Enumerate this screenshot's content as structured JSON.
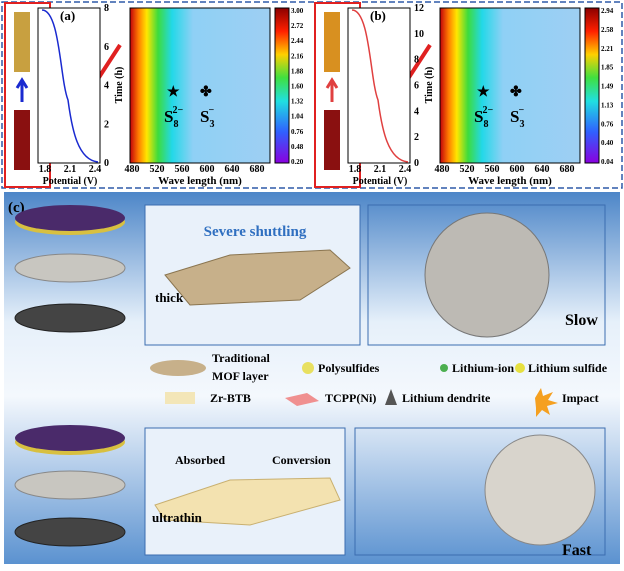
{
  "panel_a": {
    "label": "(a)",
    "time_axis_label": "Time (h)",
    "potential_label": "Potential (V)",
    "wave_label": "Wave length (nm)",
    "potential_ticks": [
      "1.8",
      "2.1",
      "2.4"
    ],
    "time_ticks": [
      "0",
      "2",
      "4",
      "6",
      "8"
    ],
    "wave_ticks": [
      "480",
      "520",
      "560",
      "600",
      "640",
      "680"
    ],
    "colorbar_ticks": [
      "3.00",
      "2.72",
      "2.44",
      "2.16",
      "1.88",
      "1.60",
      "1.32",
      "1.04",
      "0.76",
      "0.48",
      "0.20"
    ],
    "species": [
      {
        "base": "S",
        "sub": "8",
        "sup": "2−"
      },
      {
        "base": "S",
        "sub": "3",
        "sup": "−"
      }
    ]
  },
  "panel_b": {
    "label": "(b)",
    "time_axis_label": "Time (h)",
    "potential_label": "Potential (V)",
    "wave_label": "Wave length (nm)",
    "potential_ticks": [
      "1.8",
      "2.1",
      "2.4"
    ],
    "time_ticks": [
      "0",
      "2",
      "4",
      "6",
      "8",
      "10",
      "12"
    ],
    "wave_ticks": [
      "480",
      "520",
      "560",
      "600",
      "640",
      "680"
    ],
    "colorbar_ticks": [
      "2.94",
      "2.58",
      "2.21",
      "1.85",
      "1.49",
      "1.13",
      "0.76",
      "0.40",
      "0.04"
    ],
    "species": [
      {
        "base": "S",
        "sub": "8",
        "sup": "2−"
      },
      {
        "base": "S",
        "sub": "3",
        "sup": "−"
      }
    ]
  },
  "panel_c": {
    "label": "(c)",
    "top_title": "Severe shuttling",
    "top_layer": "thick",
    "top_speed": "Slow",
    "legend": {
      "mof_1": "Traditional",
      "mof_2": "MOF layer",
      "polysulfides": "Polysulfides",
      "lithium_ion": "Lithium-ion",
      "lithium_sulfide": "Lithium sulfide",
      "zr_btb": "Zr-BTB",
      "tcpp": "TCPP(Ni)",
      "dendrite": "Lithium dendrite",
      "impact": "Impact"
    },
    "bottom_absorbed": "Absorbed",
    "bottom_conversion": "Conversion",
    "bottom_layer": "ultrathin",
    "bottom_speed": "Fast"
  }
}
